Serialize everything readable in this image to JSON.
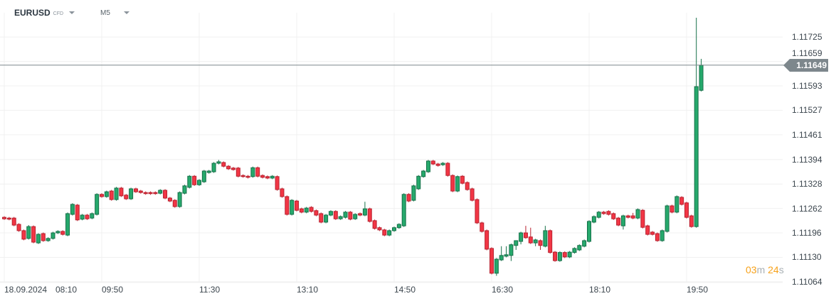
{
  "header": {
    "symbol": "EURUSD",
    "instrument_type": "CFD",
    "timeframe": "M5"
  },
  "price_tag": "1.11649",
  "timer": {
    "minutes": "03",
    "minutes_unit": "m",
    "seconds": "24",
    "seconds_unit": "s"
  },
  "colors": {
    "up": "#26a96c",
    "up_border": "#167049",
    "down": "#f23645",
    "down_border": "#b8202e",
    "price_line": "#7d878c",
    "grid": "#f0f0f0"
  },
  "chart_data": {
    "type": "candlestick",
    "ylim": [
      1.11058,
      1.11825
    ],
    "y_ticks": [
      "1.11725",
      "1.11659",
      "1.11593",
      "1.11527",
      "1.11461",
      "1.11394",
      "1.11328",
      "1.11262",
      "1.11196",
      "1.11130",
      "1.11064"
    ],
    "x_ticks": [
      {
        "label": "18.09.2024",
        "bar": 0
      },
      {
        "label": "08:10",
        "bar": 0
      },
      {
        "label": "09:50",
        "bar": 20
      },
      {
        "label": "11:30",
        "bar": 40
      },
      {
        "label": "13:10",
        "bar": 60
      },
      {
        "label": "14:50",
        "bar": 80
      },
      {
        "label": "16:30",
        "bar": 100
      },
      {
        "label": "18:10",
        "bar": 120
      },
      {
        "label": "19:50",
        "bar": 140
      }
    ],
    "grid": true,
    "current_price": 1.11649,
    "ohlc": [
      [
        1.11238,
        1.11241,
        1.11231,
        1.11234
      ],
      [
        1.11236,
        1.11239,
        1.1123,
        1.11233
      ],
      [
        1.11236,
        1.11239,
        1.11214,
        1.11217
      ],
      [
        1.11219,
        1.11222,
        1.11199,
        1.11202
      ],
      [
        1.11202,
        1.11205,
        1.11176,
        1.11179
      ],
      [
        1.11181,
        1.11217,
        1.11178,
        1.11213
      ],
      [
        1.11213,
        1.11216,
        1.11168,
        1.11171
      ],
      [
        1.11169,
        1.11195,
        1.11166,
        1.11192
      ],
      [
        1.11194,
        1.11197,
        1.11172,
        1.11175
      ],
      [
        1.11175,
        1.11184,
        1.11172,
        1.11181
      ],
      [
        1.11181,
        1.11199,
        1.11178,
        1.11196
      ],
      [
        1.11196,
        1.11203,
        1.11193,
        1.112
      ],
      [
        1.112,
        1.11203,
        1.11189,
        1.11192
      ],
      [
        1.1119,
        1.11251,
        1.11187,
        1.11248
      ],
      [
        1.11246,
        1.11276,
        1.11243,
        1.11273
      ],
      [
        1.11271,
        1.11274,
        1.11228,
        1.11231
      ],
      [
        1.11233,
        1.11247,
        1.1123,
        1.11244
      ],
      [
        1.11244,
        1.11247,
        1.11231,
        1.11234
      ],
      [
        1.11236,
        1.11251,
        1.11233,
        1.11248
      ],
      [
        1.11246,
        1.11303,
        1.11243,
        1.113
      ],
      [
        1.113,
        1.11303,
        1.11291,
        1.11294
      ],
      [
        1.11294,
        1.1131,
        1.11291,
        1.11307
      ],
      [
        1.11309,
        1.11312,
        1.11283,
        1.11286
      ],
      [
        1.11286,
        1.1132,
        1.11283,
        1.11317
      ],
      [
        1.11317,
        1.1132,
        1.11293,
        1.11296
      ],
      [
        1.11298,
        1.11301,
        1.11285,
        1.11288
      ],
      [
        1.11288,
        1.11318,
        1.11285,
        1.11315
      ],
      [
        1.11315,
        1.11318,
        1.11304,
        1.11307
      ],
      [
        1.11309,
        1.11312,
        1.11302,
        1.11305
      ],
      [
        1.11305,
        1.11308,
        1.11299,
        1.11302
      ],
      [
        1.11305,
        1.11308,
        1.11299,
        1.11302
      ],
      [
        1.11305,
        1.11308,
        1.11299,
        1.11302
      ],
      [
        1.11303,
        1.11314,
        1.113,
        1.11311
      ],
      [
        1.11311,
        1.11314,
        1.11287,
        1.1129
      ],
      [
        1.1129,
        1.11293,
        1.11279,
        1.11282
      ],
      [
        1.11284,
        1.11287,
        1.11264,
        1.11267
      ],
      [
        1.11267,
        1.11308,
        1.11264,
        1.11305
      ],
      [
        1.11303,
        1.11326,
        1.113,
        1.11323
      ],
      [
        1.11319,
        1.11352,
        1.11316,
        1.11349
      ],
      [
        1.11349,
        1.11352,
        1.11323,
        1.11326
      ],
      [
        1.11326,
        1.11341,
        1.11323,
        1.11338
      ],
      [
        1.11334,
        1.11366,
        1.11331,
        1.11363
      ],
      [
        1.11359,
        1.11366,
        1.11356,
        1.11363
      ],
      [
        1.11361,
        1.11387,
        1.11358,
        1.11384
      ],
      [
        1.11384,
        1.11393,
        1.11381,
        1.11388
      ],
      [
        1.11386,
        1.11389,
        1.11373,
        1.11376
      ],
      [
        1.11376,
        1.11379,
        1.11366,
        1.11369
      ],
      [
        1.11371,
        1.11374,
        1.11364,
        1.11367
      ],
      [
        1.11371,
        1.11374,
        1.11346,
        1.11349
      ],
      [
        1.11351,
        1.11354,
        1.11345,
        1.11348
      ],
      [
        1.11349,
        1.11352,
        1.11343,
        1.11346
      ],
      [
        1.11348,
        1.11375,
        1.11345,
        1.11372
      ],
      [
        1.11372,
        1.11375,
        1.11346,
        1.11349
      ],
      [
        1.11351,
        1.11354,
        1.11343,
        1.11346
      ],
      [
        1.11348,
        1.11351,
        1.11341,
        1.11344
      ],
      [
        1.11344,
        1.11352,
        1.11341,
        1.11349
      ],
      [
        1.11348,
        1.11351,
        1.1131,
        1.11313
      ],
      [
        1.11315,
        1.11318,
        1.11291,
        1.11294
      ],
      [
        1.11294,
        1.11297,
        1.11243,
        1.11246
      ],
      [
        1.11246,
        1.11287,
        1.11243,
        1.11284
      ],
      [
        1.11282,
        1.11285,
        1.11254,
        1.11257
      ],
      [
        1.11261,
        1.11264,
        1.11249,
        1.11252
      ],
      [
        1.11252,
        1.11266,
        1.11249,
        1.11263
      ],
      [
        1.11265,
        1.11268,
        1.11251,
        1.11254
      ],
      [
        1.11256,
        1.11259,
        1.11241,
        1.11244
      ],
      [
        1.11248,
        1.11251,
        1.11222,
        1.11225
      ],
      [
        1.11225,
        1.11247,
        1.11222,
        1.11244
      ],
      [
        1.11244,
        1.11257,
        1.11241,
        1.11254
      ],
      [
        1.11254,
        1.11257,
        1.11231,
        1.11234
      ],
      [
        1.11234,
        1.11243,
        1.11231,
        1.1124
      ],
      [
        1.11238,
        1.11255,
        1.11235,
        1.11252
      ],
      [
        1.11252,
        1.11255,
        1.1123,
        1.11233
      ],
      [
        1.11234,
        1.11249,
        1.11231,
        1.11246
      ],
      [
        1.11248,
        1.11251,
        1.11241,
        1.11244
      ],
      [
        1.11244,
        1.1128,
        1.11241,
        1.11261
      ],
      [
        1.11261,
        1.11264,
        1.11224,
        1.11227
      ],
      [
        1.11229,
        1.11232,
        1.11205,
        1.11208
      ],
      [
        1.1121,
        1.11213,
        1.11201,
        1.11204
      ],
      [
        1.11204,
        1.11207,
        1.11187,
        1.1119
      ],
      [
        1.1119,
        1.11205,
        1.11187,
        1.11202
      ],
      [
        1.11202,
        1.11213,
        1.11199,
        1.1121
      ],
      [
        1.1121,
        1.11222,
        1.11207,
        1.11219
      ],
      [
        1.11215,
        1.11303,
        1.11212,
        1.113
      ],
      [
        1.113,
        1.11303,
        1.11279,
        1.11282
      ],
      [
        1.11284,
        1.11326,
        1.11281,
        1.11323
      ],
      [
        1.11315,
        1.11352,
        1.11312,
        1.11349
      ],
      [
        1.11348,
        1.11366,
        1.11345,
        1.11363
      ],
      [
        1.11361,
        1.11393,
        1.11358,
        1.1139
      ],
      [
        1.1139,
        1.11393,
        1.11379,
        1.11382
      ],
      [
        1.11382,
        1.11385,
        1.11375,
        1.11378
      ],
      [
        1.1138,
        1.11387,
        1.11377,
        1.11384
      ],
      [
        1.11384,
        1.11387,
        1.11348,
        1.11351
      ],
      [
        1.11351,
        1.11354,
        1.11306,
        1.11309
      ],
      [
        1.11309,
        1.11351,
        1.11306,
        1.11348
      ],
      [
        1.11349,
        1.11352,
        1.11327,
        1.1133
      ],
      [
        1.11332,
        1.11335,
        1.1131,
        1.11313
      ],
      [
        1.11315,
        1.11318,
        1.11281,
        1.11284
      ],
      [
        1.11286,
        1.11289,
        1.1122,
        1.11223
      ],
      [
        1.11223,
        1.11226,
        1.11197,
        1.112
      ],
      [
        1.11202,
        1.11205,
        1.11149,
        1.11152
      ],
      [
        1.11154,
        1.11157,
        1.11084,
        1.11087
      ],
      [
        1.11087,
        1.11128,
        1.1108,
        1.11125
      ],
      [
        1.11123,
        1.1116,
        1.1112,
        1.11135
      ],
      [
        1.11133,
        1.1116,
        1.1113,
        1.11137
      ],
      [
        1.11135,
        1.11167,
        1.1112,
        1.11164
      ],
      [
        1.11162,
        1.11176,
        1.1115,
        1.11175
      ],
      [
        1.11173,
        1.11199,
        1.11165,
        1.11196
      ],
      [
        1.11196,
        1.11215,
        1.1118,
        1.11183
      ],
      [
        1.11185,
        1.1121,
        1.11166,
        1.11169
      ],
      [
        1.11169,
        1.1118,
        1.1116,
        1.11177
      ],
      [
        1.11175,
        1.11178,
        1.1115,
        1.11162
      ],
      [
        1.1116,
        1.11215,
        1.11157,
        1.11202
      ],
      [
        1.11202,
        1.11205,
        1.1114,
        1.11143
      ],
      [
        1.11144,
        1.11147,
        1.11118,
        1.11121
      ],
      [
        1.11121,
        1.11146,
        1.11118,
        1.11143
      ],
      [
        1.11143,
        1.11146,
        1.11128,
        1.11131
      ],
      [
        1.11131,
        1.11147,
        1.11128,
        1.11144
      ],
      [
        1.11143,
        1.11157,
        1.1114,
        1.11154
      ],
      [
        1.1115,
        1.11165,
        1.11147,
        1.11162
      ],
      [
        1.1116,
        1.11178,
        1.11157,
        1.11175
      ],
      [
        1.11173,
        1.1123,
        1.1117,
        1.11227
      ],
      [
        1.11225,
        1.11243,
        1.11222,
        1.1124
      ],
      [
        1.11238,
        1.11255,
        1.11235,
        1.11252
      ],
      [
        1.11252,
        1.11255,
        1.11245,
        1.11248
      ],
      [
        1.11254,
        1.11257,
        1.11243,
        1.11246
      ],
      [
        1.11248,
        1.11251,
        1.11231,
        1.11234
      ],
      [
        1.11236,
        1.11239,
        1.11214,
        1.11217
      ],
      [
        1.11215,
        1.11245,
        1.11205,
        1.11242
      ],
      [
        1.11242,
        1.11245,
        1.11235,
        1.11238
      ],
      [
        1.11242,
        1.1125,
        1.11233,
        1.11236
      ],
      [
        1.11236,
        1.11262,
        1.11233,
        1.11259
      ],
      [
        1.11257,
        1.1126,
        1.11208,
        1.11211
      ],
      [
        1.11215,
        1.11218,
        1.11189,
        1.11192
      ],
      [
        1.11198,
        1.11201,
        1.11189,
        1.11192
      ],
      [
        1.11194,
        1.11197,
        1.11172,
        1.11175
      ],
      [
        1.11175,
        1.11205,
        1.11172,
        1.11202
      ],
      [
        1.112,
        1.11272,
        1.11197,
        1.11269
      ],
      [
        1.11269,
        1.11272,
        1.11249,
        1.11252
      ],
      [
        1.11252,
        1.11297,
        1.11249,
        1.11294
      ],
      [
        1.11292,
        1.11295,
        1.1127,
        1.11273
      ],
      [
        1.11277,
        1.1128,
        1.11235,
        1.11238
      ],
      [
        1.11242,
        1.11245,
        1.1121,
        1.11213
      ],
      [
        1.11213,
        1.11777,
        1.1121,
        1.11591
      ],
      [
        1.11581,
        1.11666,
        1.11578,
        1.11649
      ]
    ]
  }
}
